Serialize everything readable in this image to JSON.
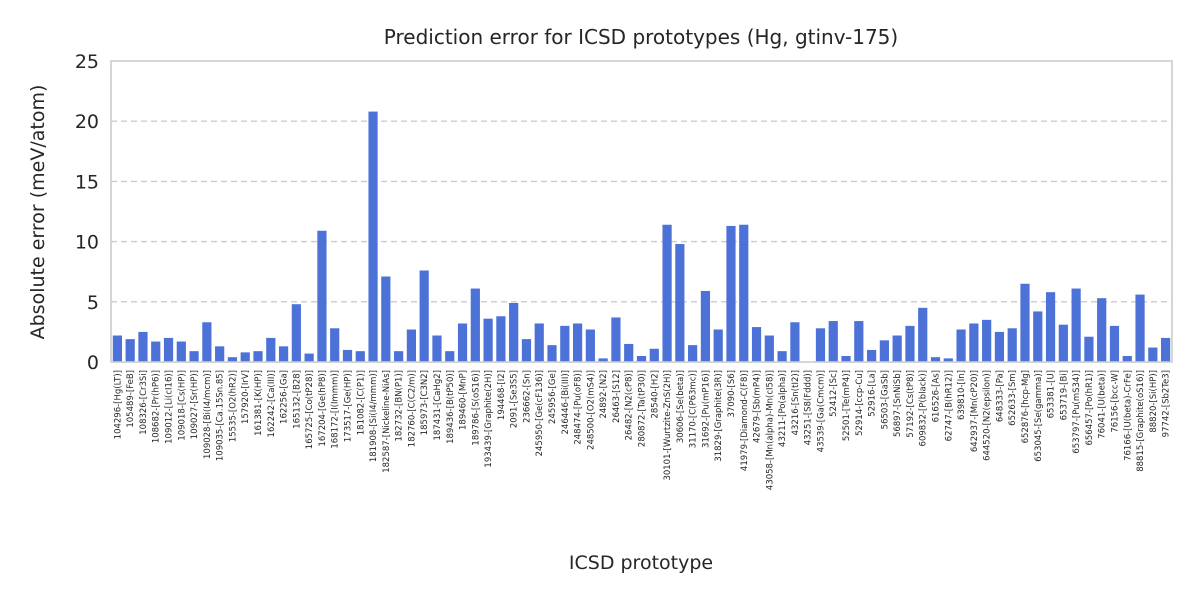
{
  "chart_data": {
    "type": "bar",
    "title": "Prediction error for ICSD prototypes (Hg, gtinv-175)",
    "xlabel": "ICSD prototype",
    "ylabel": "Absolute error (meV/atom)",
    "ylim": [
      0,
      25
    ],
    "yticks": [
      0,
      5,
      10,
      15,
      20,
      25
    ],
    "grid": true,
    "bar_color": "#4c72d8",
    "categories": [
      "104296-[Hg(LT)]",
      "105489-[FeB]",
      "108326-[Cr3Si]",
      "108682-[Pr(hP6)]",
      "109012-[Li(cI16)]",
      "109018-[Cs(HP)]",
      "109027-[Sr(HP)]",
      "109028-[Bi(I4/mcm)]",
      "109035-[Ca.15Sn.85]",
      "15535-[O2(hR2)]",
      "157920-[IrV]",
      "161381-[K(HP)]",
      "162242-[Ca(III)]",
      "162256-[Ga]",
      "165132-[B28]",
      "165725-[Co(tP28)]",
      "167204-[Ge(hP8)]",
      "168172-[I(Immm)]",
      "173517-[Ge(HP)]",
      "181082-[C(P1)]",
      "181908-[Si(I4/mmm)]",
      "182587-[Nickeline-NiAs]",
      "182732-[BN(P1)]",
      "182760-[C(C2/m)]",
      "185973-[C3N2]",
      "187431-[CaHg2]",
      "189436-[B(tP50)]",
      "189460-[MnP]",
      "189786-[S(oS16)]",
      "193439-[Graphite(2H)]",
      "194468-[I2]",
      "2091-[Se3S5]",
      "236662-[Sn]",
      "245950-[Ge(cF136)]",
      "245956-[Ge]",
      "246446-[Bi(III)]",
      "248474-[Pu(oF8)]",
      "248500-[O2(mS4)]",
      "24892-[N2]",
      "26463-[S12]",
      "26482-[N2(cP8)]",
      "280872-[Ta(tP30)]",
      "28540-[H2]",
      "30101-[Wurtzite-ZnS(2H)]",
      "30606-[Se(beta)]",
      "31170-[C(P63mc)]",
      "31692-[Pu(mP16)]",
      "31829-[Graphite(3R)]",
      "37090-[S6]",
      "41979-[Diamond-C(F8)]",
      "42679-[Sb(mP4)]",
      "43058-[Mn(alpha)-Mn(cI58)]",
      "43211-[Po(alpha)]",
      "43216-[Sn(tI2)]",
      "43251-[S8(Fddd)]",
      "43539-[Ga(Cmcm)]",
      "52412-[Sc]",
      "52501-[Te(mP4)]",
      "52914-[ccp-Cu]",
      "52916-[La]",
      "56503-[GaSb]",
      "56897-[SnNiSb]",
      "57192-[Cs(tP8)]",
      "609832-[P(black)]",
      "616526-[As]",
      "62747-[B(hR12)]",
      "639810-[In]",
      "642937-[Mn(cP20)]",
      "644520-[N2(epsilon)]",
      "648333-[Pa]",
      "652633-[Sm]",
      "652876-[hcp-Mg]",
      "653045-[Se(gamma)]",
      "653381-[U]",
      "653719-[Bi]",
      "653797-[Pu(mS34)]",
      "656457-[Po(hR1)]",
      "76041-[U(beta)]",
      "76156-[bcc-W]",
      "76166-[U(beta)-CrFe]",
      "88815-[Graphite(oS16)]",
      "88820-[Si(HP)]",
      "97742-[Sb2Te3]"
    ],
    "values": [
      2.2,
      1.9,
      2.5,
      1.7,
      2.0,
      1.7,
      0.9,
      3.3,
      1.3,
      0.4,
      0.8,
      0.9,
      2.0,
      1.3,
      4.8,
      0.7,
      10.9,
      2.8,
      1.0,
      0.9,
      20.8,
      7.1,
      0.9,
      2.7,
      7.6,
      2.2,
      0.9,
      3.2,
      6.1,
      3.6,
      3.8,
      4.9,
      1.9,
      3.2,
      1.4,
      3.0,
      3.2,
      2.7,
      0.3,
      3.7,
      1.5,
      0.5,
      1.1,
      11.4,
      9.8,
      1.4,
      5.9,
      2.7,
      11.3,
      11.4,
      2.9,
      2.2,
      0.9,
      3.3,
      0.0,
      2.8,
      3.4,
      0.5,
      3.4,
      1.0,
      1.8,
      2.2,
      3.0,
      4.5,
      0.4,
      0.3,
      2.7,
      3.2,
      3.5,
      2.5,
      2.8,
      6.5,
      4.2,
      5.8,
      3.1,
      6.1,
      2.1,
      5.3,
      3.0,
      0.5,
      5.6,
      1.2,
      2.0
    ]
  }
}
